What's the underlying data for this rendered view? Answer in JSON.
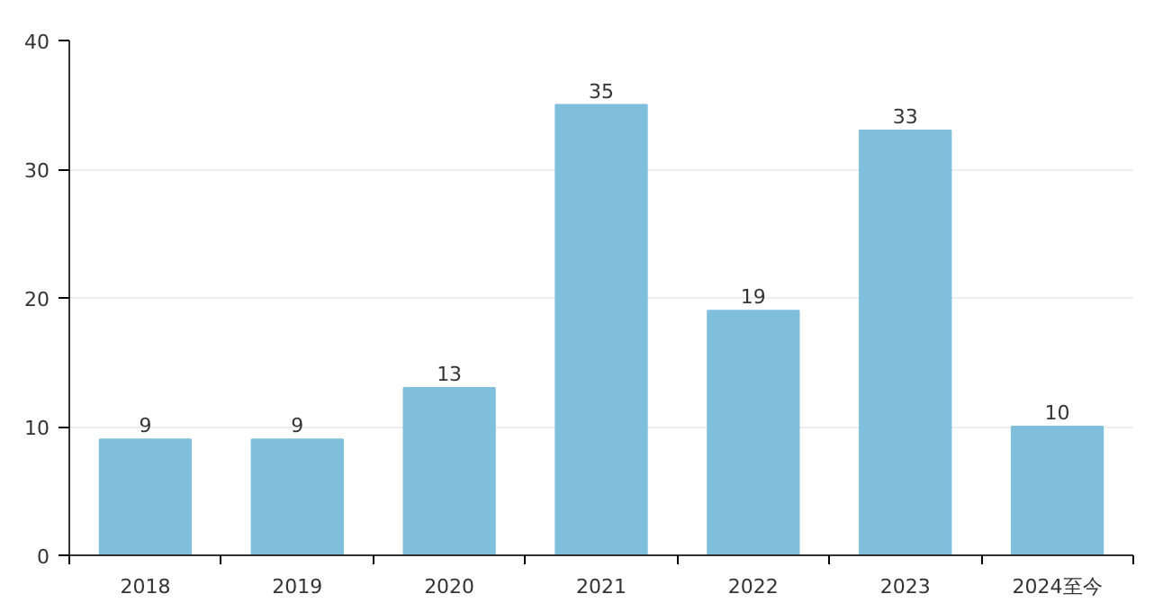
{
  "chart_data": {
    "type": "bar",
    "categories": [
      "2018",
      "2019",
      "2020",
      "2021",
      "2022",
      "2023",
      "2024至今"
    ],
    "values": [
      9,
      9,
      13,
      35,
      19,
      33,
      10
    ],
    "color": "#7fbfdc",
    "ylim": [
      0,
      40
    ],
    "yticks": [
      0,
      10,
      20,
      30,
      40
    ],
    "grid": "y",
    "data_labels": true
  }
}
